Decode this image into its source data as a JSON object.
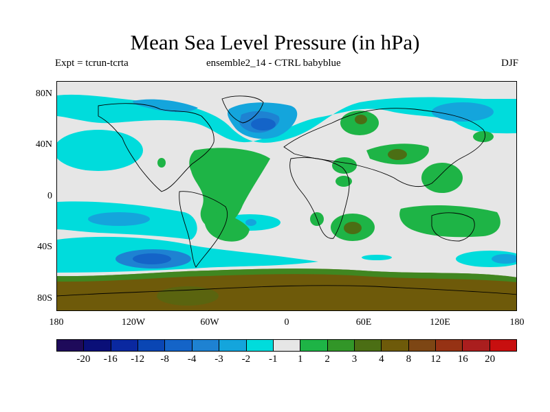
{
  "title": "Mean Sea Level Pressure (in hPa)",
  "subtitle_left": "Expt = tcrun-tcrta",
  "subtitle_center": "ensemble2_14 - CTRL babyblue",
  "subtitle_right": "DJF",
  "lat_labels": [
    "80N",
    "40N",
    "0",
    "40S",
    "80S"
  ],
  "lon_labels": [
    "180",
    "120W",
    "60W",
    "0",
    "60E",
    "120E",
    "180"
  ],
  "colorbar": {
    "colors": [
      "#1e0a5a",
      "#0a0f78",
      "#0a28a0",
      "#0a46b4",
      "#1464c8",
      "#1e82d2",
      "#14a5dc",
      "#00dcdc",
      "#e6e6e6",
      "#1eb446",
      "#329628",
      "#4b6e14",
      "#6e5a0a",
      "#7d4614",
      "#963214",
      "#aa1e1e",
      "#c80f0f"
    ],
    "labels": [
      "-20",
      "-16",
      "-12",
      "-8",
      "-4",
      "-3",
      "-2",
      "-1",
      "1",
      "2",
      "3",
      "4",
      "8",
      "12",
      "16",
      "20"
    ]
  },
  "palette": {
    "background": "#e6e6e6",
    "neg1": "#00dcdc",
    "neg2": "#14a5dc",
    "neg3": "#1e82d2",
    "neg4": "#1464c8",
    "pos1": "#1eb446",
    "pos3": "#4b6e14",
    "pos4": "#6e5a0a",
    "pos8": "#7d5010"
  }
}
